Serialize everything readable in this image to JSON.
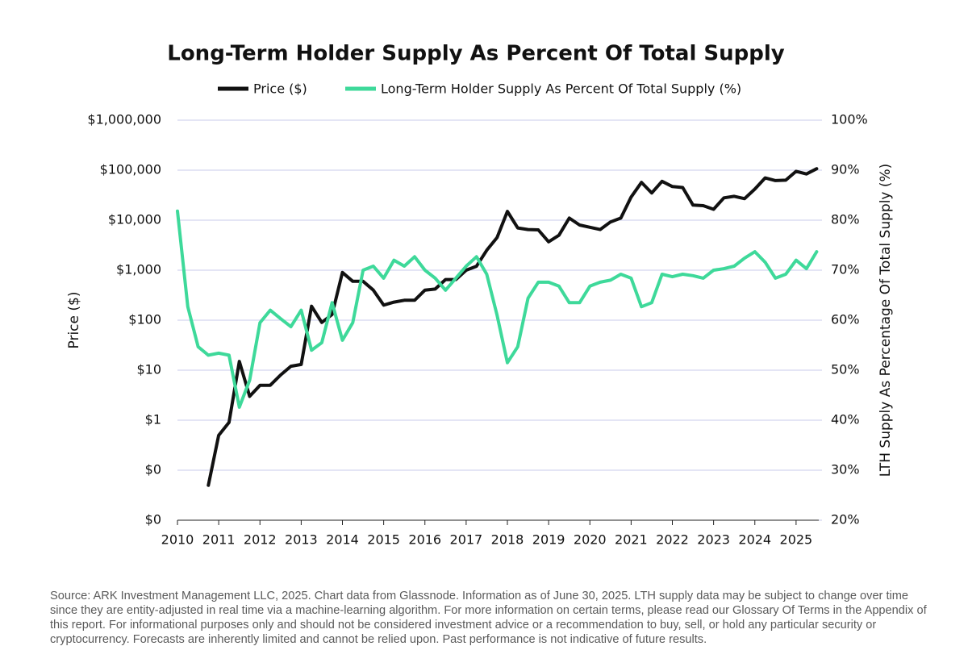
{
  "chart_data": {
    "type": "line",
    "title": "Long-Term Holder Supply As Percent Of Total Supply",
    "ylabel": "Price ($)",
    "y2label": "LTH Supply As Percentage Of Total Supply (%)",
    "footnote": "Source: ARK Investment Management LLC, 2025. Chart data from Glassnode. Information as of June 30, 2025. LTH supply data may be subject to change over time since they are entity-adjusted in real time via a machine-learning algorithm. For more information on certain terms, please read our Glossary Of Terms in the Appendix of this report. For informational purposes only and should not be considered investment advice or a recommendation to buy, sell, or hold any particular security or cryptocurrency. Forecasts are inherently limited and cannot be relied upon. Past performance is not indicative of future results.",
    "yscale": "log",
    "grid": true,
    "legend": "top",
    "xlim": [
      2010,
      2025.55
    ],
    "xticks": [
      2010,
      2011,
      2012,
      2013,
      2014,
      2015,
      2016,
      2017,
      2018,
      2019,
      2020,
      2021,
      2022,
      2023,
      2024,
      2025
    ],
    "ylim": [
      0.01,
      1000000
    ],
    "yticks": [
      {
        "value": 0.01,
        "label": "$0"
      },
      {
        "value": 0.1,
        "label": "$0"
      },
      {
        "value": 1,
        "label": "$1"
      },
      {
        "value": 10,
        "label": "$10"
      },
      {
        "value": 100,
        "label": "$100"
      },
      {
        "value": 1000,
        "label": "$1,000"
      },
      {
        "value": 10000,
        "label": "$10,000"
      },
      {
        "value": 100000,
        "label": "$100,000"
      },
      {
        "value": 1000000,
        "label": "$1,000,000"
      }
    ],
    "y2lim": [
      20,
      100
    ],
    "y2ticks": [
      {
        "value": 20,
        "label": "20%"
      },
      {
        "value": 30,
        "label": "30%"
      },
      {
        "value": 40,
        "label": "40%"
      },
      {
        "value": 50,
        "label": "50%"
      },
      {
        "value": 60,
        "label": "60%"
      },
      {
        "value": 70,
        "label": "70%"
      },
      {
        "value": 80,
        "label": "80%"
      },
      {
        "value": 90,
        "label": "90%"
      },
      {
        "value": 100,
        "label": "100%"
      }
    ],
    "x": [
      2010,
      2010.25,
      2010.5,
      2010.75,
      2011,
      2011.25,
      2011.5,
      2011.75,
      2012,
      2012.25,
      2012.5,
      2012.75,
      2013,
      2013.25,
      2013.5,
      2013.75,
      2014,
      2014.25,
      2014.5,
      2014.75,
      2015,
      2015.25,
      2015.5,
      2015.75,
      2016,
      2016.25,
      2016.5,
      2016.75,
      2017,
      2017.25,
      2017.5,
      2017.75,
      2018,
      2018.25,
      2018.5,
      2018.75,
      2019,
      2019.25,
      2019.5,
      2019.75,
      2020,
      2020.25,
      2020.5,
      2020.75,
      2021,
      2021.25,
      2021.5,
      2021.75,
      2022,
      2022.25,
      2022.5,
      2022.75,
      2023,
      2023.25,
      2023.5,
      2023.75,
      2024,
      2024.25,
      2024.5,
      2024.75,
      2025,
      2025.25,
      2025.5
    ],
    "series": [
      {
        "name": "Price ($)",
        "color": "#111111",
        "values": [
          null,
          null,
          null,
          0.05,
          0.5,
          0.9,
          15,
          3,
          5,
          5,
          8,
          12,
          13,
          190,
          90,
          130,
          900,
          600,
          600,
          400,
          200,
          230,
          250,
          250,
          400,
          420,
          650,
          650,
          1000,
          1200,
          2500,
          4500,
          15000,
          7000,
          6500,
          6400,
          3700,
          5000,
          11000,
          8000,
          7200,
          6500,
          9200,
          11000,
          29000,
          57000,
          35000,
          60000,
          47000,
          45000,
          20000,
          19500,
          16500,
          28000,
          30000,
          27000,
          42000,
          70000,
          62000,
          63000,
          95000,
          84000,
          107000
        ]
      },
      {
        "name": "Long-Term Holder Supply As Percent Of Total Supply (%)",
        "color": "#3ed99a",
        "axis": "y2",
        "values": [
          81.8,
          62.7,
          54.7,
          53,
          53.4,
          53,
          42.6,
          48,
          59.5,
          62,
          60.3,
          58.7,
          62,
          54,
          55.5,
          63.5,
          56,
          59.5,
          70,
          70.8,
          68.4,
          72,
          70.8,
          72.7,
          70,
          68.4,
          66,
          68.4,
          70.8,
          72.7,
          69.2,
          61,
          51.5,
          54.7,
          64.4,
          67.6,
          67.6,
          66.8,
          63.5,
          63.5,
          66.8,
          67.6,
          68,
          69.2,
          68.4,
          62.7,
          63.5,
          69.2,
          68.7,
          69.2,
          68.9,
          68.4,
          70,
          70.3,
          70.8,
          72.4,
          73.7,
          71.6,
          68.4,
          69.2,
          72,
          70.3,
          73.7
        ]
      }
    ]
  }
}
